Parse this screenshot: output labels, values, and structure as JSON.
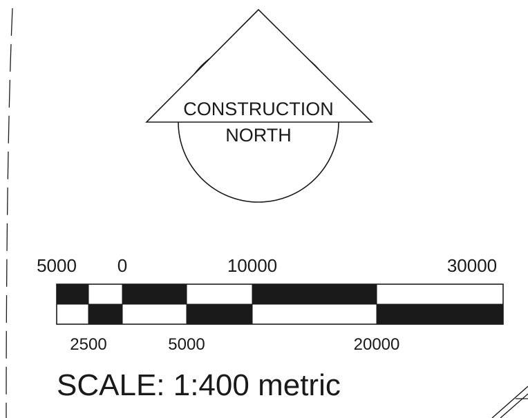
{
  "north_arrow": {
    "line1": "CONSTRUCTION",
    "line2": "NORTH"
  },
  "scale_bar": {
    "top_labels": [
      "5000",
      "0",
      "10000",
      "30000"
    ],
    "bottom_labels": [
      "2500",
      "5000",
      "20000"
    ],
    "top_row_fills": [
      "black",
      "white",
      "black",
      "white",
      "black",
      "white"
    ],
    "bottom_row_fills": [
      "white",
      "black",
      "white",
      "black",
      "white",
      "black"
    ]
  },
  "scale_text": "SCALE: 1:400 metric",
  "colors": {
    "ink": "#1a1a1a",
    "paper": "#ffffff"
  }
}
